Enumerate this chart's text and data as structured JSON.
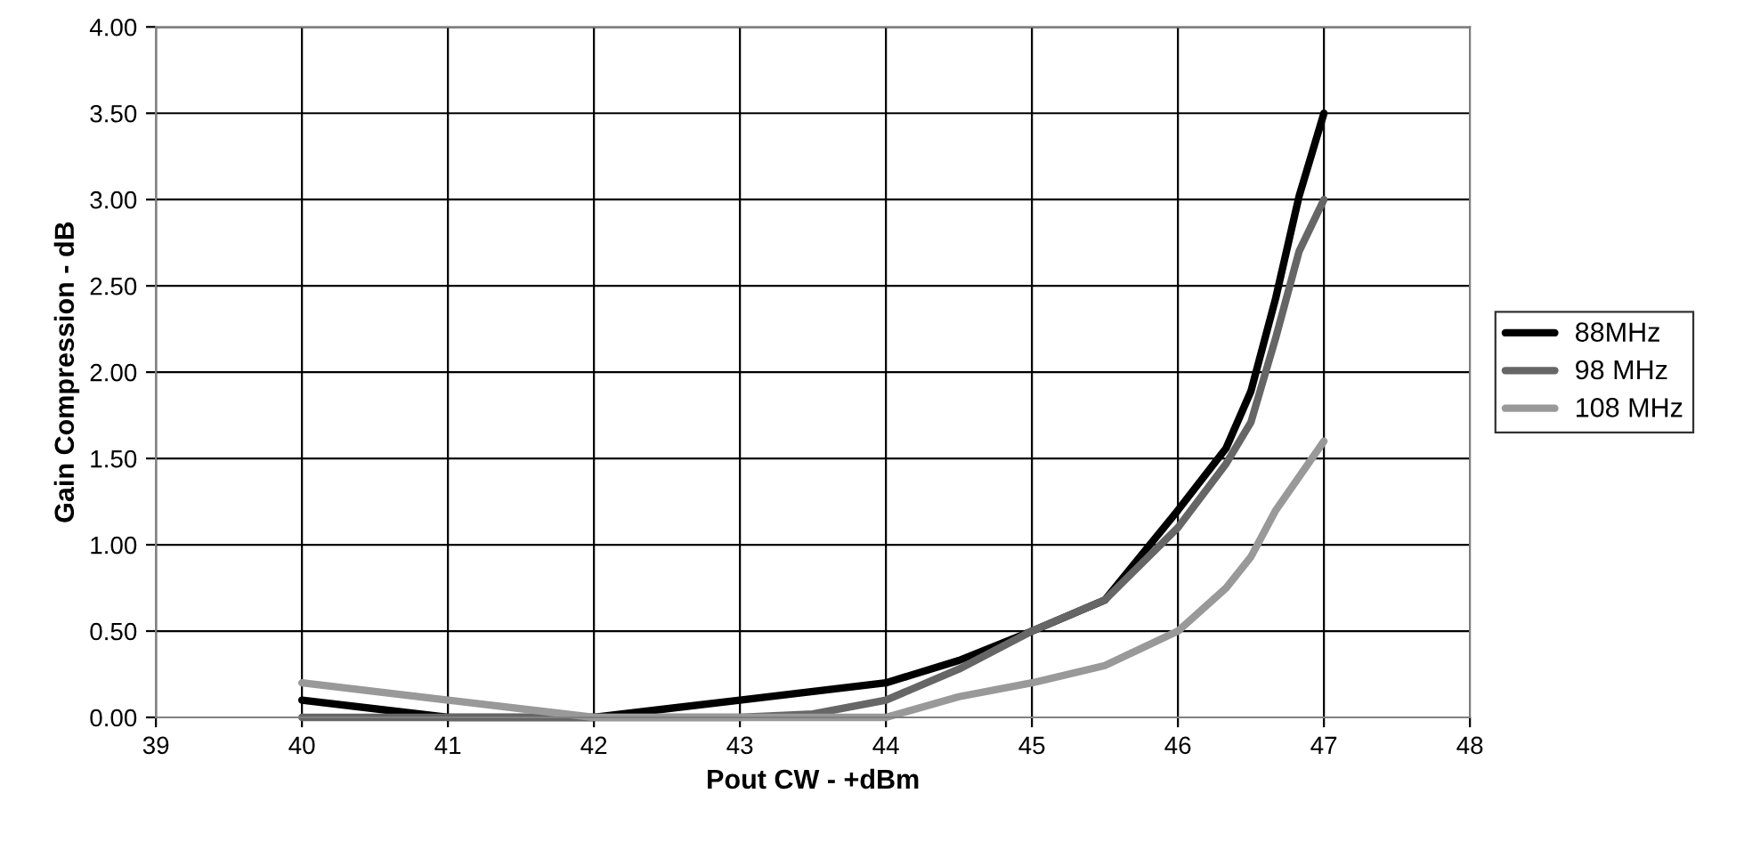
{
  "chart_data": {
    "type": "line",
    "xlabel": "Pout CW - +dBm",
    "ylabel": "Gain Compression - dB",
    "xlim": [
      39,
      48
    ],
    "xticks": [
      39,
      40,
      41,
      42,
      43,
      44,
      45,
      46,
      47,
      48
    ],
    "ylim": [
      0,
      4
    ],
    "yticks": [
      {
        "value": 0,
        "label": "0.00"
      },
      {
        "value": 0.5,
        "label": "0.50"
      },
      {
        "value": 1,
        "label": "1.00"
      },
      {
        "value": 1.5,
        "label": "1.50"
      },
      {
        "value": 2,
        "label": "2.00"
      },
      {
        "value": 2.5,
        "label": "2.50"
      },
      {
        "value": 3,
        "label": "3.00"
      },
      {
        "value": 3.5,
        "label": "3.50"
      },
      {
        "value": 4,
        "label": "4.00"
      }
    ],
    "grid": true,
    "legend": "right",
    "marker": "none",
    "line_style": "solid",
    "series": [
      {
        "name": "88MHz",
        "color": "#000000",
        "x": [
          40,
          41,
          42,
          43,
          44,
          44.5,
          45,
          45.5,
          46,
          46.33,
          46.5,
          46.67,
          46.83,
          47
        ],
        "values": [
          0.1,
          0,
          0,
          0.1,
          0.2,
          0.33,
          0.5,
          0.68,
          1.2,
          1.56,
          1.89,
          2.43,
          3.02,
          3.5
        ]
      },
      {
        "name": "98 MHz",
        "color": "#666666",
        "x": [
          40,
          41,
          42,
          43,
          43.5,
          44,
          44.5,
          45,
          45.5,
          46,
          46.33,
          46.5,
          46.67,
          46.83,
          47
        ],
        "values": [
          0,
          0,
          0,
          0,
          0.02,
          0.1,
          0.28,
          0.5,
          0.68,
          1.1,
          1.47,
          1.71,
          2.2,
          2.7,
          3.0
        ]
      },
      {
        "name": "108 MHz",
        "color": "#999999",
        "x": [
          40,
          41,
          42,
          43,
          44,
          44.5,
          45,
          45.5,
          46,
          46.33,
          46.5,
          46.67,
          47
        ],
        "values": [
          0.2,
          0.1,
          0,
          0,
          0,
          0.12,
          0.2,
          0.3,
          0.5,
          0.75,
          0.93,
          1.2,
          1.6
        ]
      }
    ]
  }
}
